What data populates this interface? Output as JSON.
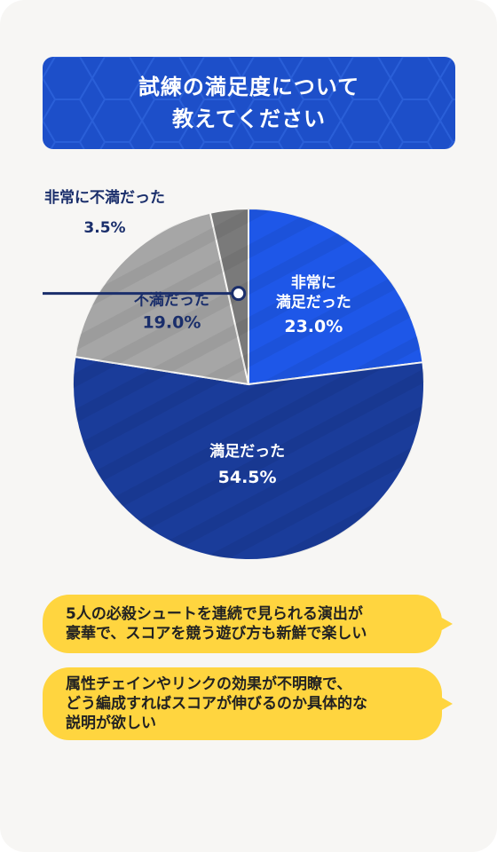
{
  "header": {
    "title": "試練の満足度について\n教えてください"
  },
  "chart_data": {
    "type": "pie",
    "title": "試練の満足度について教えてください",
    "slices": [
      {
        "label": "非常に満足だった",
        "value": 23.0,
        "value_label": "23.0%",
        "color": "#1e57e8"
      },
      {
        "label": "満足だった",
        "value": 54.5,
        "value_label": "54.5%",
        "color": "#1a3c9a"
      },
      {
        "label": "不満だった",
        "value": 19.0,
        "value_label": "19.0%",
        "color": "#a6a6a6"
      },
      {
        "label": "非常に不満だった",
        "value": 3.5,
        "value_label": "3.5%",
        "color": "#7a7a7a"
      }
    ],
    "legend": "none",
    "callout_color": "#1a2e6b"
  },
  "comments": [
    {
      "text": "5人の必殺シュートを連続で見られる演出が\n豪華で、スコアを競う遊び方も新鮮で楽しい"
    },
    {
      "text": "属性チェインやリンクの効果が不明瞭で、\nどう編成すればスコアが伸びるのか具体的な\n説明が欲しい"
    }
  ]
}
